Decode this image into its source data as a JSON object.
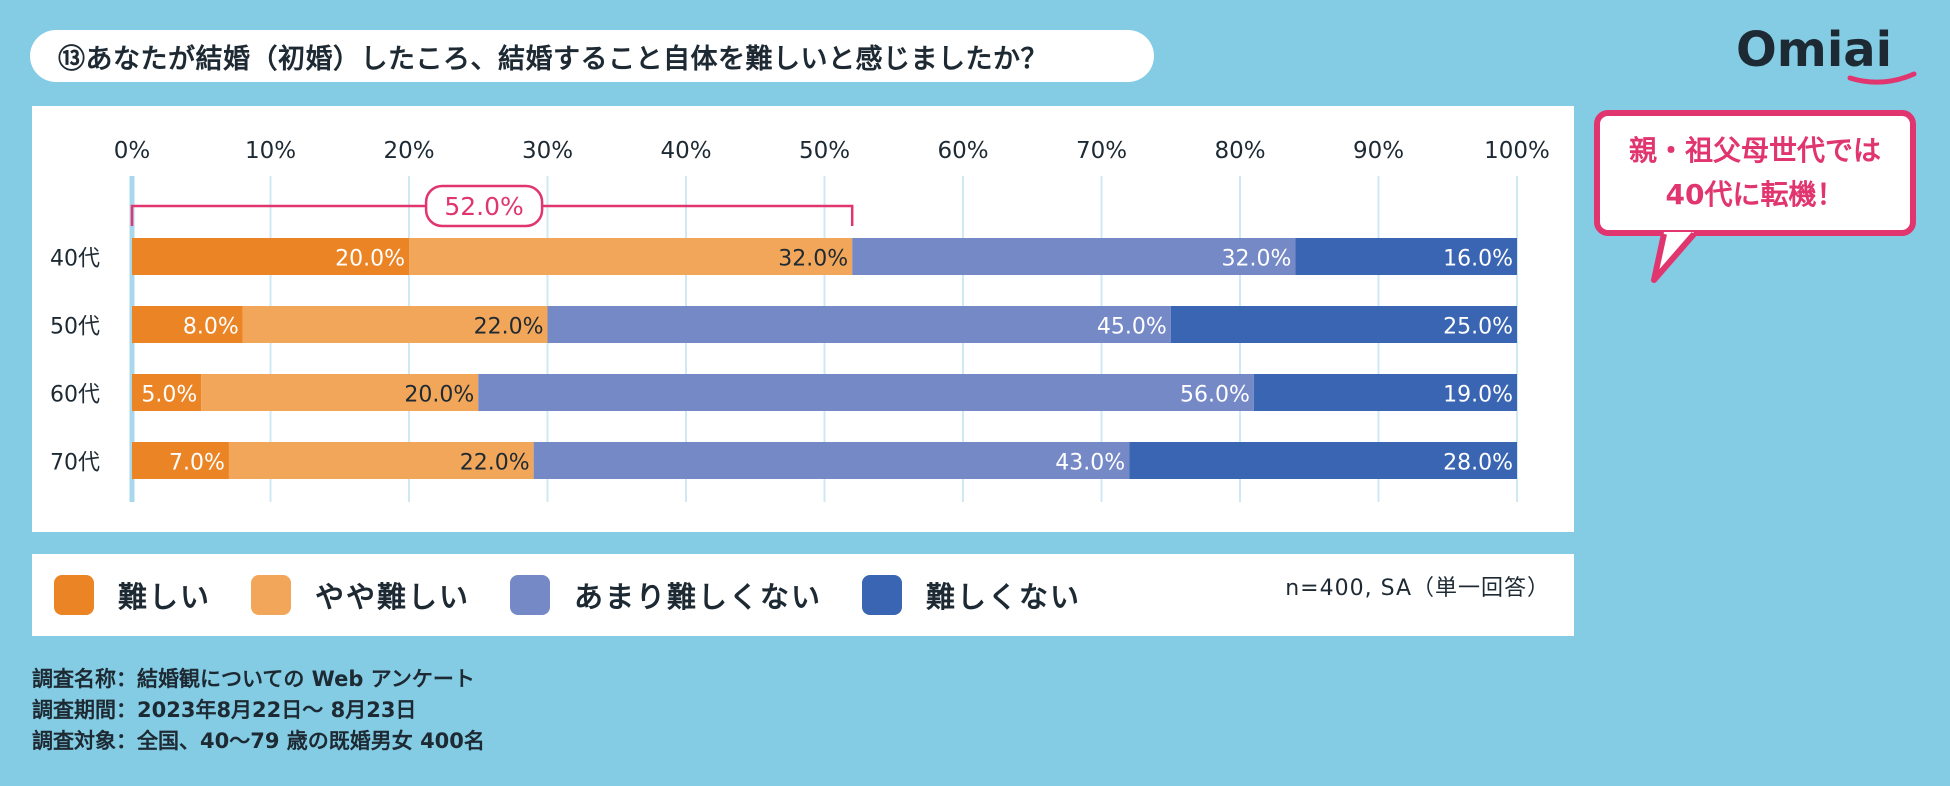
{
  "title": "⑬あなたが結婚（初婚）したころ、結婚すること自体を難しいと感じましたか？",
  "logo": {
    "text": "Omiai"
  },
  "callout": {
    "line1": "親・祖父母世代では",
    "line2": "40代に転機！"
  },
  "colors": {
    "background": "#83cce4",
    "difficult": "#eb8425",
    "somewhat_difficult": "#f2a659",
    "not_very_difficult": "#7589c7",
    "not_difficult": "#3a65b2",
    "accent": "#e0356f"
  },
  "chart_data": {
    "type": "bar",
    "orientation": "horizontal-stacked-100",
    "title": "⑬あなたが結婚（初婚）したころ、結婚すること自体を難しいと感じましたか？",
    "categories": [
      "40代",
      "50代",
      "60代",
      "70代"
    ],
    "x_ticks": [
      "0%",
      "10%",
      "20%",
      "30%",
      "40%",
      "50%",
      "60%",
      "70%",
      "80%",
      "90%",
      "100%"
    ],
    "xlim": [
      0,
      100
    ],
    "series": [
      {
        "name": "難しい",
        "color": "#eb8425",
        "values": [
          20.0,
          8.0,
          5.0,
          7.0
        ],
        "labels": [
          "20.0%",
          "8.0%",
          "5.0%",
          "7.0%"
        ]
      },
      {
        "name": "やや難しい",
        "color": "#f2a659",
        "values": [
          32.0,
          22.0,
          20.0,
          22.0
        ],
        "labels": [
          "32.0%",
          "22.0%",
          "20.0%",
          "22.0%"
        ]
      },
      {
        "name": "あまり難しくない",
        "color": "#7589c7",
        "values": [
          32.0,
          45.0,
          56.0,
          43.0
        ],
        "labels": [
          "32.0%",
          "45.0%",
          "56.0%",
          "43.0%"
        ]
      },
      {
        "name": "難しくない",
        "color": "#3a65b2",
        "values": [
          16.0,
          25.0,
          19.0,
          28.0
        ],
        "labels": [
          "16.0%",
          "25.0%",
          "19.0%",
          "28.0%"
        ]
      }
    ],
    "annotation": {
      "label": "52.0%",
      "from": 0,
      "to": 52,
      "category": "40代"
    },
    "legend_position": "bottom",
    "grid": true
  },
  "legend": {
    "items": [
      {
        "label": "難しい",
        "color": "#eb8425"
      },
      {
        "label": "やや難しい",
        "color": "#f2a659"
      },
      {
        "label": "あまり難しくない",
        "color": "#7589c7"
      },
      {
        "label": "難しくない",
        "color": "#3a65b2"
      }
    ],
    "note": "n=400, SA（単一回答）"
  },
  "survey": {
    "name": "調査名称：結婚観についての Web アンケート",
    "period": "調査期間：2023年8月22日～ 8月23日",
    "target": "調査対象：全国、40～79 歳の既婚男女 400名"
  }
}
